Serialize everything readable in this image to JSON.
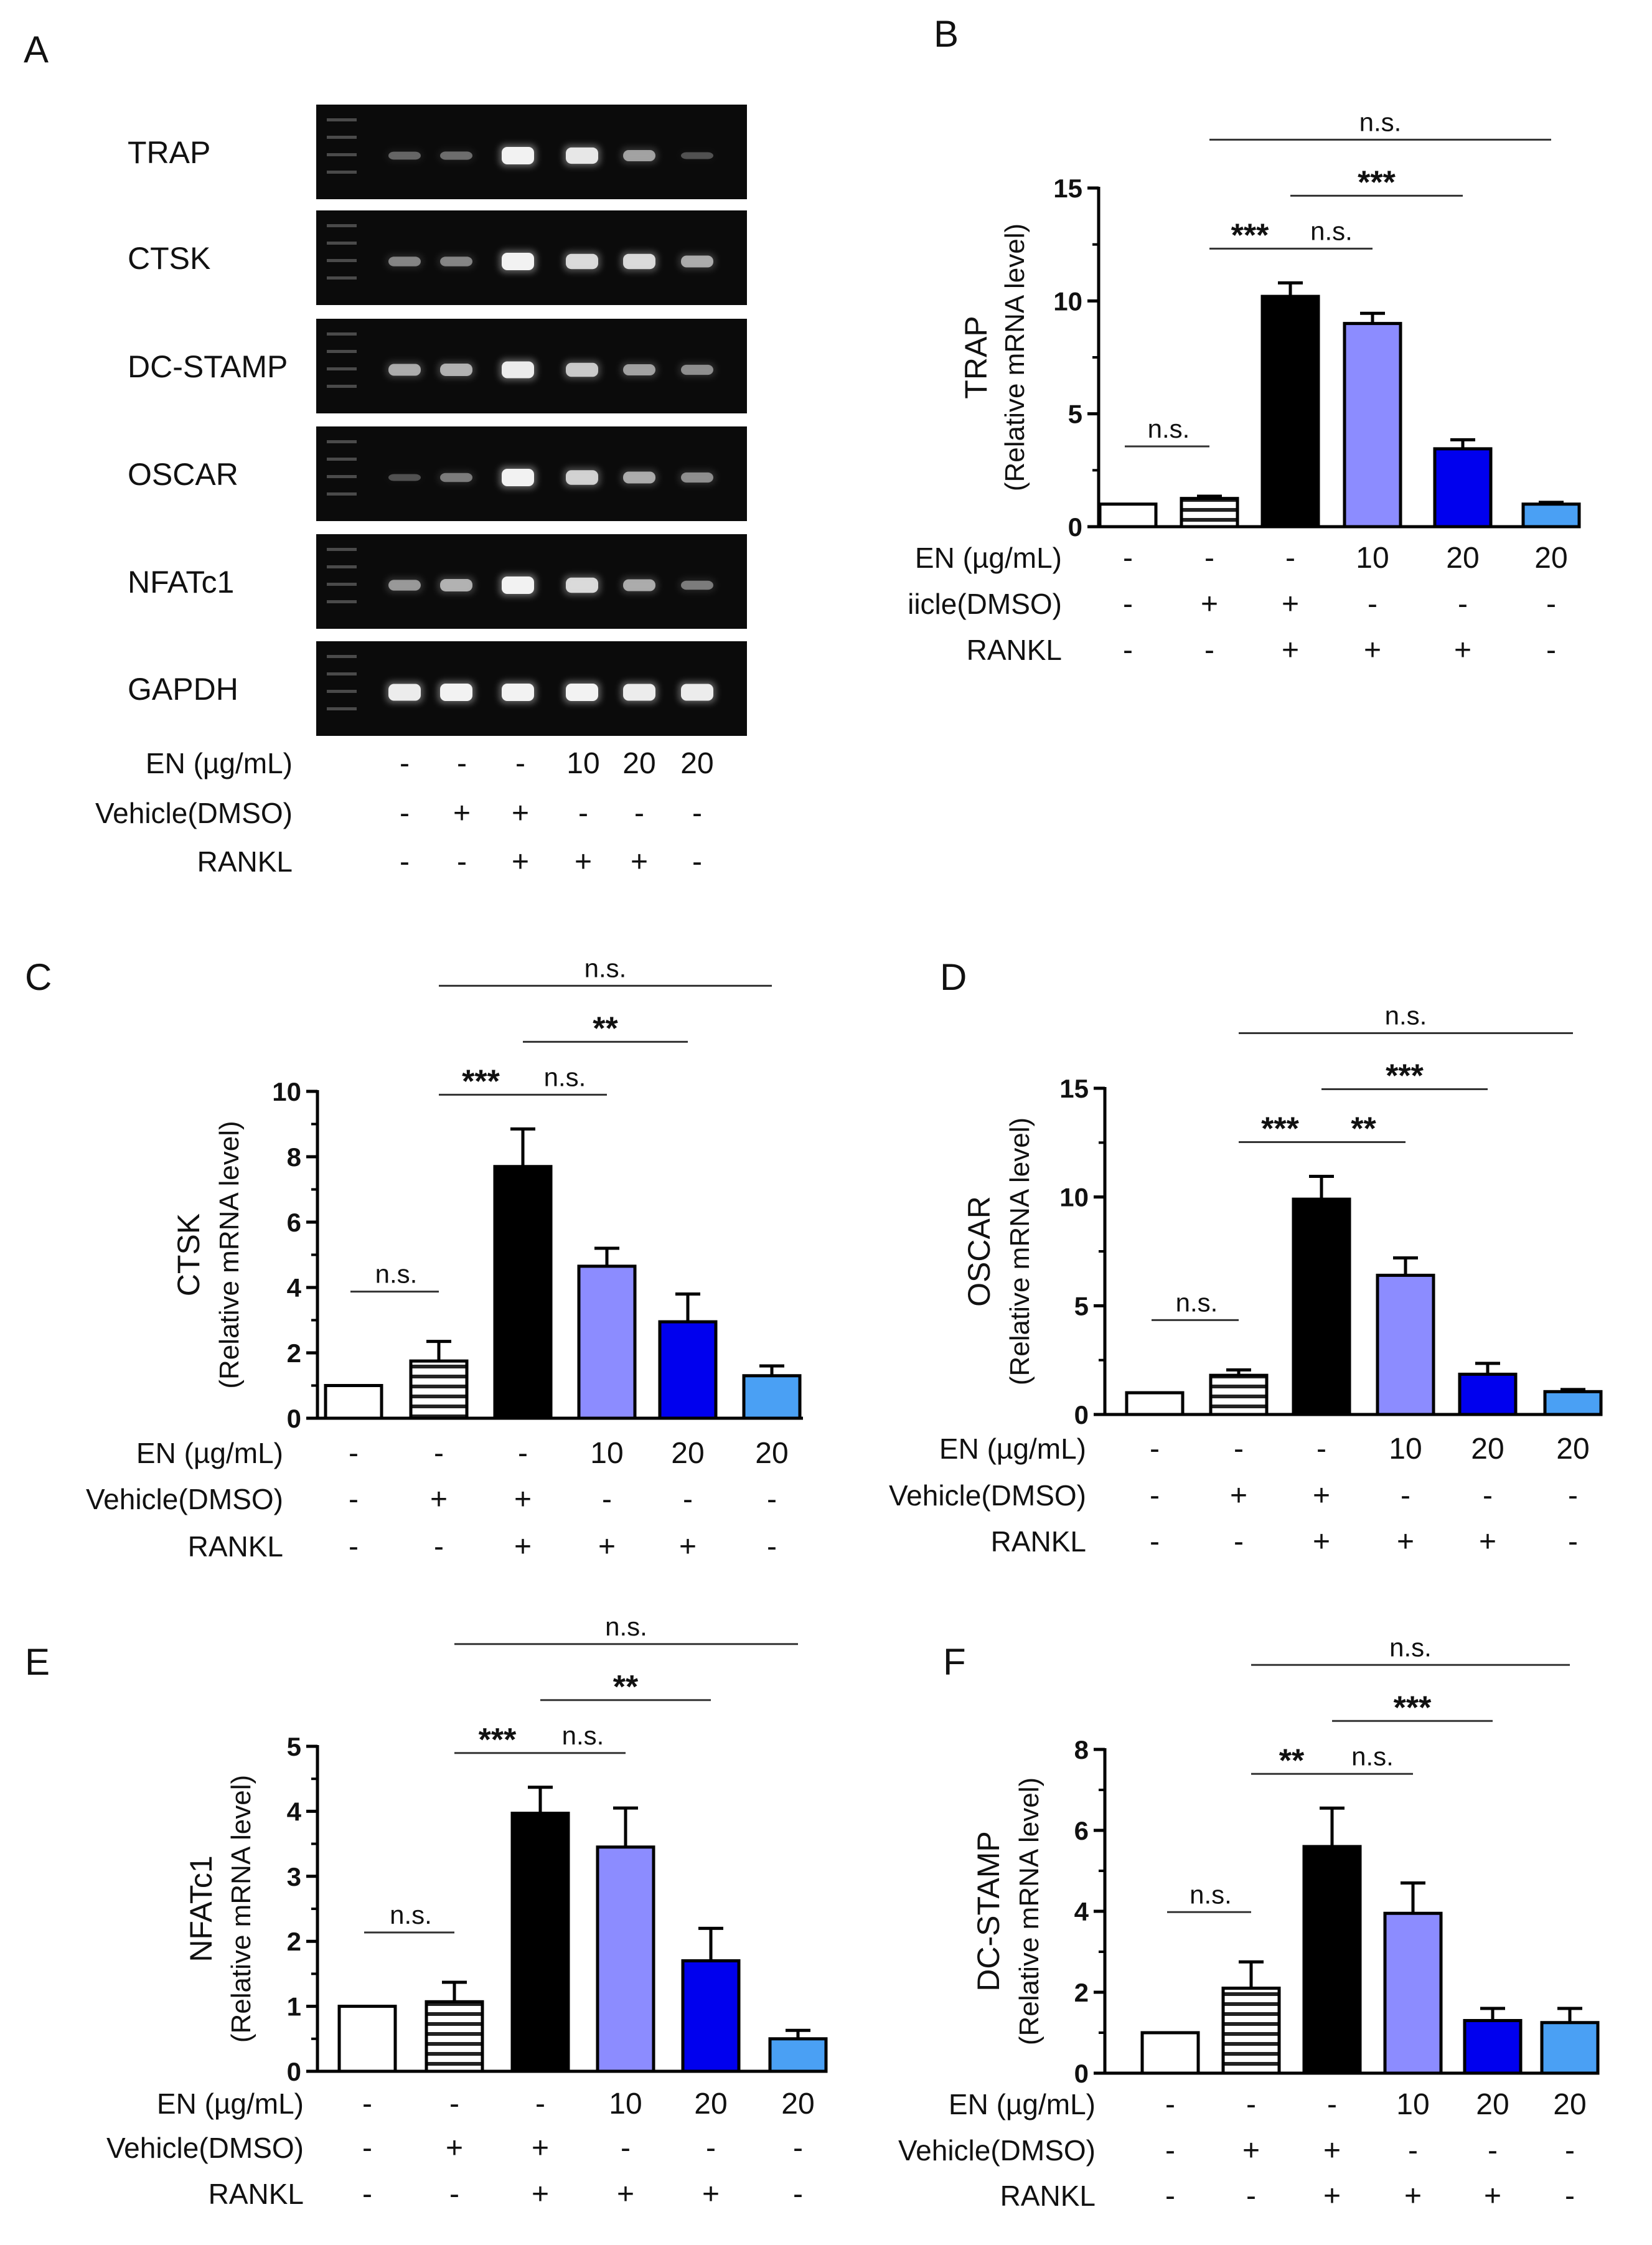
{
  "gel_panel": {
    "letter": "A",
    "genes": [
      "TRAP",
      "CTSK",
      "DC-STAMP",
      "OSCAR",
      "NFATc1",
      "GAPDH"
    ]
  },
  "conditions": [
    {
      "label": "EN (µg/mL)",
      "values": [
        "-",
        "-",
        "-",
        "10",
        "20",
        "20"
      ]
    },
    {
      "label": "Vehicle(DMSO)",
      "values": [
        "-",
        "+",
        "+",
        "-",
        "-",
        "-"
      ]
    },
    {
      "label": "RANKL",
      "values": [
        "-",
        "-",
        "+",
        "+",
        "+",
        "-"
      ]
    }
  ],
  "conditions_B_vehicle_label": "iicle(DMSO)",
  "bar_colors": [
    "#ffffff",
    "striped",
    "#000000",
    "#8c8cff",
    "#0000ee",
    "#4aa0f4"
  ],
  "chart_data": [
    {
      "letter": "B",
      "type": "bar",
      "categories": [
        "1",
        "2",
        "3",
        "4",
        "5",
        "6"
      ],
      "ylabel_main": "TRAP",
      "ylabel_sub": "(Relative mRNA level)",
      "ylim": [
        0,
        15
      ],
      "yticks": [
        0,
        5,
        10,
        15
      ],
      "tick_labels": [
        "0",
        "5",
        "10",
        "15"
      ],
      "values": [
        1.0,
        1.25,
        10.2,
        9.0,
        3.45,
        1.0
      ],
      "errors": [
        0,
        0.1,
        0.6,
        0.45,
        0.4,
        0.08
      ],
      "significance": [
        {
          "from": 0,
          "to": 1,
          "label": "n.s."
        },
        {
          "from": 1,
          "to": 2,
          "label": "***"
        },
        {
          "from": 2,
          "to": 3,
          "label": "n.s."
        },
        {
          "from": 2,
          "to": 4,
          "label": "***"
        },
        {
          "from": 1,
          "to": 5,
          "label": "n.s."
        }
      ]
    },
    {
      "letter": "C",
      "type": "bar",
      "categories": [
        "1",
        "2",
        "3",
        "4",
        "5",
        "6"
      ],
      "ylabel_main": "CTSK",
      "ylabel_sub": "(Relative mRNA level)",
      "ylim": [
        0,
        10
      ],
      "yticks": [
        0,
        2,
        4,
        6,
        8,
        10
      ],
      "tick_labels": [
        "0",
        "2",
        "4",
        "6",
        "8",
        "10"
      ],
      "values": [
        1.0,
        1.75,
        7.7,
        4.65,
        2.95,
        1.3
      ],
      "errors": [
        0,
        0.6,
        1.15,
        0.55,
        0.85,
        0.3
      ],
      "significance": [
        {
          "from": 0,
          "to": 1,
          "label": "n.s."
        },
        {
          "from": 1,
          "to": 2,
          "label": "***"
        },
        {
          "from": 2,
          "to": 3,
          "label": "n.s."
        },
        {
          "from": 2,
          "to": 4,
          "label": "**"
        },
        {
          "from": 1,
          "to": 5,
          "label": "n.s."
        }
      ]
    },
    {
      "letter": "D",
      "type": "bar",
      "categories": [
        "1",
        "2",
        "3",
        "4",
        "5",
        "6"
      ],
      "ylabel_main": "OSCAR",
      "ylabel_sub": "(Relative mRNA level)",
      "ylim": [
        0,
        15
      ],
      "yticks": [
        0,
        5,
        10,
        15
      ],
      "tick_labels": [
        "0",
        "5",
        "10",
        "15"
      ],
      "values": [
        1.0,
        1.8,
        9.9,
        6.4,
        1.85,
        1.05
      ],
      "errors": [
        0,
        0.25,
        1.05,
        0.8,
        0.5,
        0.1
      ],
      "significance": [
        {
          "from": 0,
          "to": 1,
          "label": "n.s."
        },
        {
          "from": 1,
          "to": 2,
          "label": "***"
        },
        {
          "from": 2,
          "to": 3,
          "label": "**"
        },
        {
          "from": 2,
          "to": 4,
          "label": "***"
        },
        {
          "from": 1,
          "to": 5,
          "label": "n.s."
        }
      ]
    },
    {
      "letter": "E",
      "type": "bar",
      "categories": [
        "1",
        "2",
        "3",
        "4",
        "5",
        "6"
      ],
      "ylabel_main": "NFATc1",
      "ylabel_sub": "(Relative mRNA level)",
      "ylim": [
        0,
        5
      ],
      "yticks": [
        0,
        1,
        2,
        3,
        4,
        5
      ],
      "tick_labels": [
        "0",
        "1",
        "2",
        "3",
        "4",
        "5"
      ],
      "values": [
        1.0,
        1.07,
        3.97,
        3.45,
        1.7,
        0.5
      ],
      "errors": [
        0,
        0.3,
        0.4,
        0.6,
        0.5,
        0.13
      ],
      "significance": [
        {
          "from": 0,
          "to": 1,
          "label": "n.s."
        },
        {
          "from": 1,
          "to": 2,
          "label": "***"
        },
        {
          "from": 2,
          "to": 3,
          "label": "n.s."
        },
        {
          "from": 2,
          "to": 4,
          "label": "**"
        },
        {
          "from": 1,
          "to": 5,
          "label": "n.s."
        }
      ]
    },
    {
      "letter": "F",
      "type": "bar",
      "categories": [
        "1",
        "2",
        "3",
        "4",
        "5",
        "6"
      ],
      "ylabel_main": "DC-STAMP",
      "ylabel_sub": "(Relative mRNA level)",
      "ylim": [
        0,
        8
      ],
      "yticks": [
        0,
        2,
        4,
        6,
        8
      ],
      "tick_labels": [
        "0",
        "2",
        "4",
        "6",
        "8"
      ],
      "values": [
        1.0,
        2.1,
        5.6,
        3.95,
        1.3,
        1.25
      ],
      "errors": [
        0,
        0.65,
        0.95,
        0.75,
        0.3,
        0.35
      ],
      "significance": [
        {
          "from": 0,
          "to": 1,
          "label": "n.s."
        },
        {
          "from": 1,
          "to": 2,
          "label": "**"
        },
        {
          "from": 2,
          "to": 3,
          "label": "n.s."
        },
        {
          "from": 2,
          "to": 4,
          "label": "***"
        },
        {
          "from": 1,
          "to": 5,
          "label": "n.s."
        }
      ]
    }
  ]
}
